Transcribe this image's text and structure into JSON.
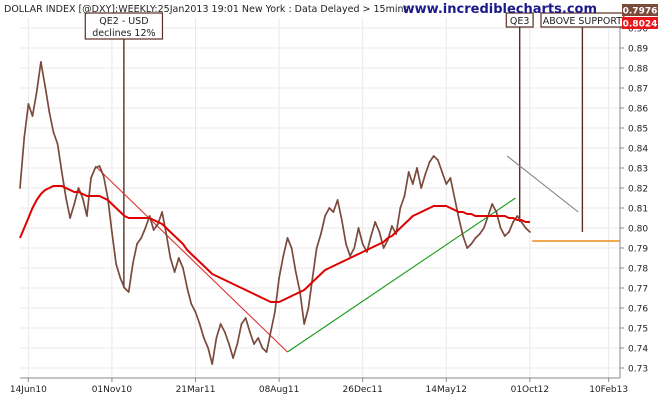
{
  "header": {
    "title": "DOLLAR INDEX [@DXY]:WEEKLY:25Jan2013 19:01 New York : Data Delayed > 15mins",
    "watermark": "www.incrediblecharts.com"
  },
  "price_badges": [
    {
      "label": "0.7976",
      "value": 0.7976,
      "color": "#7a4a3a"
    },
    {
      "label": "0.8024",
      "value": 0.8024,
      "color": "#e8151b"
    }
  ],
  "annotations": [
    {
      "text": [
        "QE2 - USD",
        "declines 12%"
      ],
      "date": "2010-11-21"
    },
    {
      "text": [
        "QE3"
      ],
      "date": "2012-09-14"
    },
    {
      "text": [
        "ABOVE SUPPORT"
      ],
      "date": "2012-12-28"
    }
  ],
  "colors": {
    "price": "#7a4a3a",
    "moving_average": "#e00000",
    "trend_down": "#e03030",
    "trend_up": "#1a9a1a",
    "trend_grey": "#808080",
    "support": "#f08a1a",
    "grid": "#e9e9e9",
    "axis_text": "#222222"
  },
  "chart_data": {
    "type": "line",
    "title": "DOLLAR INDEX [@DXY]:WEEKLY:25Jan2013 19:01 New York : Data Delayed > 15mins",
    "xlabel": "",
    "ylabel": "",
    "x_tick_labels": [
      "14Jun10",
      "01Nov10",
      "21Mar11",
      "08Aug11",
      "26Dec11",
      "14May12",
      "01Oct12",
      "10Feb13"
    ],
    "x_tick_dates": [
      "2010-06-14",
      "2010-11-01",
      "2011-03-21",
      "2011-08-08",
      "2011-12-26",
      "2012-05-14",
      "2012-10-01",
      "2013-02-10"
    ],
    "y_ticks": [
      0.73,
      0.74,
      0.75,
      0.76,
      0.77,
      0.78,
      0.79,
      0.8,
      0.81,
      0.82,
      0.83,
      0.84,
      0.85,
      0.86,
      0.87,
      0.88,
      0.89,
      0.9
    ],
    "ylim": [
      0.725,
      0.905
    ],
    "xlim": [
      "2010-05-31",
      "2013-03-01"
    ],
    "y_axis_side": "right",
    "grid": true,
    "legend": "none",
    "series": [
      {
        "kind": "price",
        "start": "2010-05-31",
        "interval_days": 7,
        "values": [
          0.82,
          0.845,
          0.862,
          0.856,
          0.868,
          0.883,
          0.871,
          0.858,
          0.848,
          0.842,
          0.828,
          0.815,
          0.805,
          0.812,
          0.82,
          0.815,
          0.806,
          0.825,
          0.83,
          0.831,
          0.826,
          0.815,
          0.798,
          0.782,
          0.775,
          0.77,
          0.768,
          0.782,
          0.792,
          0.795,
          0.8,
          0.806,
          0.799,
          0.802,
          0.808,
          0.797,
          0.785,
          0.778,
          0.785,
          0.78,
          0.77,
          0.762,
          0.758,
          0.752,
          0.745,
          0.74,
          0.732,
          0.745,
          0.752,
          0.748,
          0.742,
          0.735,
          0.742,
          0.752,
          0.755,
          0.748,
          0.742,
          0.745,
          0.74,
          0.738,
          0.748,
          0.758,
          0.775,
          0.786,
          0.795,
          0.79,
          0.778,
          0.768,
          0.752,
          0.76,
          0.775,
          0.79,
          0.797,
          0.806,
          0.81,
          0.808,
          0.814,
          0.804,
          0.792,
          0.786,
          0.79,
          0.8,
          0.792,
          0.788,
          0.796,
          0.803,
          0.798,
          0.79,
          0.794,
          0.801,
          0.797,
          0.81,
          0.816,
          0.828,
          0.822,
          0.83,
          0.82,
          0.827,
          0.833,
          0.836,
          0.834,
          0.828,
          0.822,
          0.825,
          0.815,
          0.805,
          0.796,
          0.79,
          0.792,
          0.795,
          0.797,
          0.8,
          0.806,
          0.812,
          0.808,
          0.8,
          0.796,
          0.798,
          0.803,
          0.806,
          0.803,
          0.8,
          0.798
        ]
      },
      {
        "kind": "moving_average",
        "start": "2010-05-31",
        "interval_days": 7,
        "values": [
          0.795,
          0.8,
          0.805,
          0.81,
          0.814,
          0.817,
          0.819,
          0.82,
          0.821,
          0.821,
          0.821,
          0.82,
          0.819,
          0.818,
          0.818,
          0.817,
          0.816,
          0.816,
          0.816,
          0.816,
          0.815,
          0.814,
          0.812,
          0.81,
          0.808,
          0.806,
          0.805,
          0.805,
          0.805,
          0.805,
          0.805,
          0.805,
          0.804,
          0.803,
          0.802,
          0.8,
          0.798,
          0.796,
          0.794,
          0.792,
          0.789,
          0.787,
          0.785,
          0.783,
          0.781,
          0.779,
          0.777,
          0.776,
          0.775,
          0.774,
          0.773,
          0.772,
          0.771,
          0.77,
          0.769,
          0.768,
          0.767,
          0.766,
          0.765,
          0.764,
          0.763,
          0.763,
          0.763,
          0.764,
          0.765,
          0.766,
          0.767,
          0.768,
          0.769,
          0.771,
          0.773,
          0.775,
          0.777,
          0.779,
          0.78,
          0.781,
          0.782,
          0.783,
          0.784,
          0.785,
          0.786,
          0.787,
          0.788,
          0.789,
          0.79,
          0.791,
          0.792,
          0.793,
          0.795,
          0.796,
          0.798,
          0.8,
          0.802,
          0.804,
          0.806,
          0.807,
          0.808,
          0.809,
          0.81,
          0.811,
          0.811,
          0.811,
          0.811,
          0.81,
          0.809,
          0.808,
          0.808,
          0.807,
          0.807,
          0.806,
          0.806,
          0.806,
          0.806,
          0.806,
          0.806,
          0.806,
          0.806,
          0.805,
          0.805,
          0.804,
          0.804,
          0.803,
          0.803
        ]
      }
    ],
    "trendlines": [
      {
        "name": "qe2-decline",
        "color": "#e03030",
        "from": [
          "2010-10-04",
          0.831
        ],
        "to": [
          "2011-08-22",
          0.738
        ]
      },
      {
        "name": "uptrend",
        "color": "#1a9a1a",
        "from": [
          "2011-08-22",
          0.738
        ],
        "to": [
          "2012-09-07",
          0.815
        ]
      },
      {
        "name": "qe3-decline",
        "color": "#808080",
        "from": [
          "2012-08-24",
          0.836
        ],
        "to": [
          "2012-12-21",
          0.808
        ]
      },
      {
        "name": "support",
        "color": "#f08a1a",
        "from": [
          "2012-10-05",
          0.7935
        ],
        "to": [
          "2013-03-01",
          0.7935
        ]
      }
    ]
  }
}
